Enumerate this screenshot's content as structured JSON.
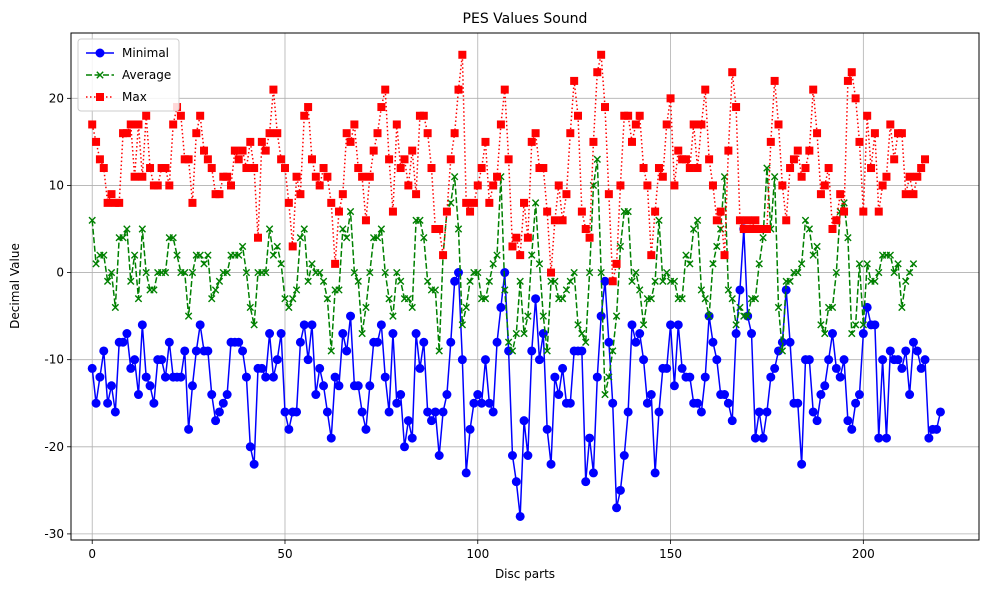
{
  "chart_data": {
    "type": "line",
    "title": "PES Values Sound",
    "xlabel": "Disc parts",
    "ylabel": "Decimal Value",
    "xlim": [
      -5.5,
      230
    ],
    "ylim": [
      -30.7,
      27.5
    ],
    "xticks": [
      0,
      50,
      100,
      150,
      200
    ],
    "yticks": [
      -30,
      -20,
      -10,
      0,
      10,
      20
    ],
    "grid": true,
    "legend_position": "top-left",
    "series": [
      {
        "name": "Minimal",
        "color": "#0000ff",
        "linestyle": "solid",
        "marker": "circle",
        "values": [
          -11,
          -15,
          -12,
          -9,
          -15,
          -13,
          -16,
          -8,
          -8,
          -7,
          -11,
          -10,
          -14,
          -6,
          -12,
          -13,
          -15,
          -10,
          -10,
          -12,
          -8,
          -12,
          -12,
          -12,
          -9,
          -18,
          -13,
          -9,
          -6,
          -9,
          -9,
          -14,
          -17,
          -16,
          -15,
          -14,
          -8,
          -8,
          -8,
          -9,
          -12,
          -20,
          -22,
          -11,
          -11,
          -12,
          -7,
          -12,
          -10,
          -7,
          -16,
          -18,
          -16,
          -16,
          -8,
          -6,
          -10,
          -6,
          -14,
          -11,
          -13,
          -16,
          -19,
          -12,
          -13,
          -7,
          -9,
          -5,
          -13,
          -13,
          -16,
          -18,
          -13,
          -8,
          -8,
          -6,
          -12,
          -16,
          -7,
          -15,
          -14,
          -20,
          -17,
          -19,
          -7,
          -11,
          -8,
          -16,
          -17,
          -16,
          -21,
          -16,
          -14,
          -8,
          -1,
          0,
          -10,
          -23,
          -18,
          -15,
          -14,
          -15,
          -10,
          -15,
          -16,
          -8,
          -4,
          0,
          -9,
          -21,
          -24,
          -28,
          -17,
          -21,
          -9,
          -3,
          -10,
          -7,
          -18,
          -22,
          -12,
          -14,
          -11,
          -15,
          -15,
          -9,
          -9,
          -9,
          -24,
          -19,
          -23,
          -12,
          -5,
          -1,
          -8,
          -15,
          -27,
          -25,
          -21,
          -16,
          -6,
          -8,
          -7,
          -10,
          -15,
          -14,
          -23,
          -16,
          -11,
          -11,
          -6,
          -13,
          -6,
          -11,
          -12,
          -12,
          -15,
          -15,
          -16,
          -12,
          -5,
          -8,
          -10,
          -14,
          -14,
          -15,
          -17,
          -7,
          -2,
          5,
          -5,
          -7,
          -19,
          -16,
          -19,
          -16,
          -12,
          -11,
          -9,
          -8,
          -2,
          -8,
          -15,
          -15,
          -22,
          -10,
          -10,
          -16,
          -17,
          -14,
          -13,
          -10,
          -7,
          -11,
          -12,
          -10,
          -17,
          -18,
          -15,
          -14,
          -7,
          -4,
          -6,
          -6,
          -19,
          -10,
          -19,
          -9,
          -10,
          -10,
          -11,
          -9,
          -14,
          -8,
          -9,
          -11,
          -10,
          -19,
          -18,
          -18,
          -16
        ]
      },
      {
        "name": "Average",
        "color": "#008000",
        "linestyle": "dashed",
        "marker": "x",
        "values": [
          6,
          1,
          2,
          2,
          -1,
          0,
          -4,
          4,
          4,
          5,
          -1,
          2,
          -3,
          5,
          0,
          -2,
          -2,
          0,
          0,
          0,
          4,
          4,
          2,
          0,
          0,
          -5,
          0,
          2,
          2,
          1,
          2,
          -3,
          -2,
          -1,
          0,
          0,
          2,
          2,
          2,
          3,
          0,
          -4,
          -6,
          0,
          0,
          0,
          5,
          2,
          3,
          1,
          -3,
          -4,
          -3,
          -2,
          4,
          5,
          -1,
          1,
          0,
          0,
          -1,
          -3,
          -9,
          -2,
          -2,
          5,
          4,
          7,
          0,
          -1,
          -7,
          -4,
          0,
          4,
          4,
          5,
          0,
          -3,
          -5,
          0,
          -1,
          -3,
          -3,
          -4,
          6,
          6,
          4,
          -1,
          -2,
          -2,
          -9,
          2,
          7,
          8,
          11,
          5,
          -6,
          -4,
          -1,
          0,
          0,
          -3,
          -3,
          -1,
          1,
          2,
          11,
          -2,
          -8,
          -9,
          -7,
          -1,
          -7,
          -5,
          2,
          8,
          1,
          -5,
          -9,
          -1,
          -1,
          -3,
          -3,
          -2,
          -1,
          0,
          -6,
          -7,
          -8,
          0,
          10,
          13,
          0,
          -14,
          -12,
          -9,
          -5,
          3,
          7,
          7,
          -1,
          0,
          -2,
          -6,
          -3,
          -3,
          -1,
          6,
          -1,
          0,
          -1,
          -1,
          -3,
          -3,
          2,
          1,
          5,
          6,
          -2,
          -3,
          -5,
          1,
          3,
          5,
          11,
          -2,
          -3,
          -6,
          -4,
          -5,
          -5,
          -3,
          -3,
          1,
          4,
          12,
          5,
          11,
          -4,
          -9,
          -1,
          -1,
          0,
          0,
          1,
          6,
          5,
          2,
          3,
          -6,
          -7,
          -4,
          -4,
          0,
          7,
          8,
          4,
          -7,
          -6,
          1,
          -6,
          1,
          -1,
          -1,
          0,
          2,
          2,
          2,
          0,
          1,
          -4,
          -1,
          0,
          1
        ]
      },
      {
        "name": "Max",
        "color": "#ff0000",
        "linestyle": "dotted",
        "marker": "square",
        "values": [
          17,
          15,
          13,
          12,
          8,
          9,
          8,
          8,
          16,
          16,
          17,
          11,
          17,
          11,
          18,
          12,
          10,
          10,
          12,
          12,
          10,
          17,
          19,
          18,
          13,
          13,
          8,
          16,
          18,
          14,
          13,
          12,
          9,
          9,
          11,
          11,
          10,
          14,
          13,
          14,
          12,
          15,
          12,
          4,
          15,
          14,
          16,
          21,
          16,
          13,
          12,
          8,
          3,
          11,
          9,
          18,
          19,
          13,
          11,
          10,
          12,
          11,
          8,
          1,
          7,
          9,
          16,
          15,
          17,
          12,
          11,
          6,
          11,
          14,
          16,
          19,
          21,
          13,
          7,
          17,
          12,
          13,
          10,
          14,
          9,
          18,
          18,
          16,
          12,
          5,
          5,
          2,
          7,
          13,
          16,
          21,
          25,
          8,
          7,
          8,
          10,
          12,
          15,
          8,
          10,
          11,
          17,
          21,
          13,
          3,
          4,
          2,
          8,
          4,
          15,
          16,
          12,
          12,
          7,
          0,
          6,
          10,
          6,
          9,
          16,
          22,
          18,
          7,
          5,
          4,
          15,
          23,
          25,
          19,
          9,
          -1,
          1,
          10,
          18,
          18,
          15,
          17,
          18,
          12,
          10,
          2,
          7,
          12,
          11,
          17,
          20,
          10,
          14,
          13,
          13,
          12,
          17,
          12,
          17,
          21,
          13,
          10,
          6,
          7,
          2,
          14,
          23,
          19,
          6,
          5,
          6,
          5,
          6,
          5,
          5,
          5,
          15,
          22,
          17,
          10,
          6,
          12,
          13,
          14,
          11,
          12,
          14,
          21,
          16,
          9,
          10,
          12,
          5,
          6,
          9,
          7,
          22,
          23,
          20,
          15,
          7,
          18,
          12,
          16,
          7,
          10,
          11,
          17,
          13,
          16,
          16,
          9,
          11,
          9,
          11,
          12,
          13
        ]
      }
    ]
  }
}
